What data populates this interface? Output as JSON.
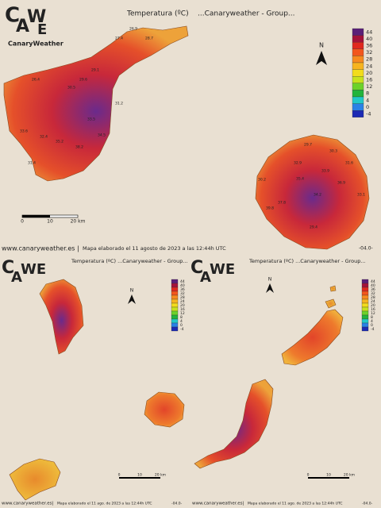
{
  "main": {
    "logo": "CanaryWeather",
    "title": "Temperatura (ºC)    ...Canaryweather - Group...",
    "north": "N",
    "scale": [
      "0",
      "10",
      "20 km"
    ],
    "tenerife_labels": [
      26.9,
      28.7,
      27.4,
      29.1,
      29.6,
      26.4,
      30.5,
      31.2,
      33.5,
      34.5,
      38.2,
      35.2,
      32.4,
      33.6,
      31.4
    ],
    "grancanaria_labels": [
      29.7,
      30.3,
      31.6,
      32.9,
      33.9,
      36.9,
      35.4,
      34.2,
      33.1,
      30.2,
      29.4,
      37.8,
      39.8
    ],
    "footer": {
      "site": "www.canaryweather.es |",
      "date": "Mapa elaborado el 11 agosto de 2023 a las 12:44h UTC",
      "code": "-04.0-"
    }
  },
  "legend": {
    "ticks": [
      44,
      40,
      36,
      32,
      28,
      24,
      20,
      16,
      12,
      8,
      4,
      0,
      -4
    ],
    "colors": [
      "#5a1f78",
      "#a3123a",
      "#e0281e",
      "#f2561c",
      "#f78a1e",
      "#f7b41e",
      "#f2dc1c",
      "#c8e21e",
      "#6cd22a",
      "#22b43c",
      "#22c8c8",
      "#2a82e6",
      "#1c2ab4"
    ]
  },
  "west": {
    "logo": "CanaryWeather",
    "title": "Temperatura (ºC) ...Canaryweather - Group...",
    "north": "N",
    "scale": [
      "0",
      "10",
      "20 km"
    ],
    "footer": {
      "site": "www.canaryweather.es|",
      "date": "Mapa elaborado el 11 ago. de 2023 a las 12:44h UTC",
      "code": "-04.0-"
    }
  },
  "east": {
    "logo": "CanaryWeather",
    "title": "Temperatura (ºC) ...Canaryweather - Group...",
    "north": "N",
    "scale": [
      "0",
      "10",
      "20 km"
    ],
    "footer": {
      "site": "www.canaryweather.es|",
      "date": "Mapa elaborado el 11 ago. de 2023 a las 12:44h UTC",
      "code": "-04.0-"
    }
  }
}
